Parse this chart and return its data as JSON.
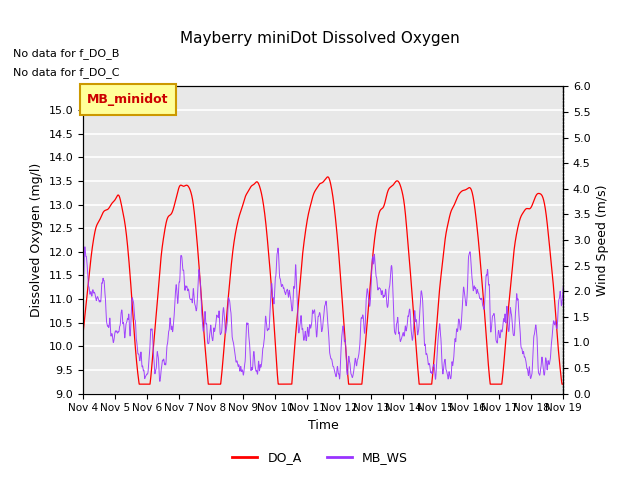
{
  "title": "Mayberry miniDot Dissolved Oxygen",
  "xlabel": "Time",
  "ylabel_left": "Dissolved Oxygen (mg/l)",
  "ylabel_right": "Wind Speed (m/s)",
  "annotation1": "No data for f_DO_B",
  "annotation2": "No data for f_DO_C",
  "legend_label": "MB_minidot",
  "ylim_left": [
    9.0,
    15.5
  ],
  "ylim_right": [
    0.0,
    6.0
  ],
  "yticks_left": [
    9.0,
    9.5,
    10.0,
    10.5,
    11.0,
    11.5,
    12.0,
    12.5,
    13.0,
    13.5,
    14.0,
    14.5,
    15.0
  ],
  "yticks_right": [
    0.0,
    0.5,
    1.0,
    1.5,
    2.0,
    2.5,
    3.0,
    3.5,
    4.0,
    4.5,
    5.0,
    5.5,
    6.0
  ],
  "color_DO_A": "#ff0000",
  "color_MB_WS": "#9933ff",
  "legend_DO_A": "DO_A",
  "legend_MB_WS": "MB_WS",
  "xtick_labels": [
    "Nov 4",
    "Nov 5",
    "Nov 6",
    "Nov 7",
    "Nov 8",
    "Nov 9",
    "Nov 10",
    "Nov 11",
    "Nov 12",
    "Nov 13",
    "Nov 14",
    "Nov 15",
    "Nov 16",
    "Nov 17",
    "Nov 18",
    "Nov 19"
  ],
  "background_color": "#e8e8e8",
  "grid_color": "#ffffff",
  "box_facecolor": "#ffff99",
  "box_edgecolor": "#cc9900",
  "box_text_color": "#cc0000"
}
